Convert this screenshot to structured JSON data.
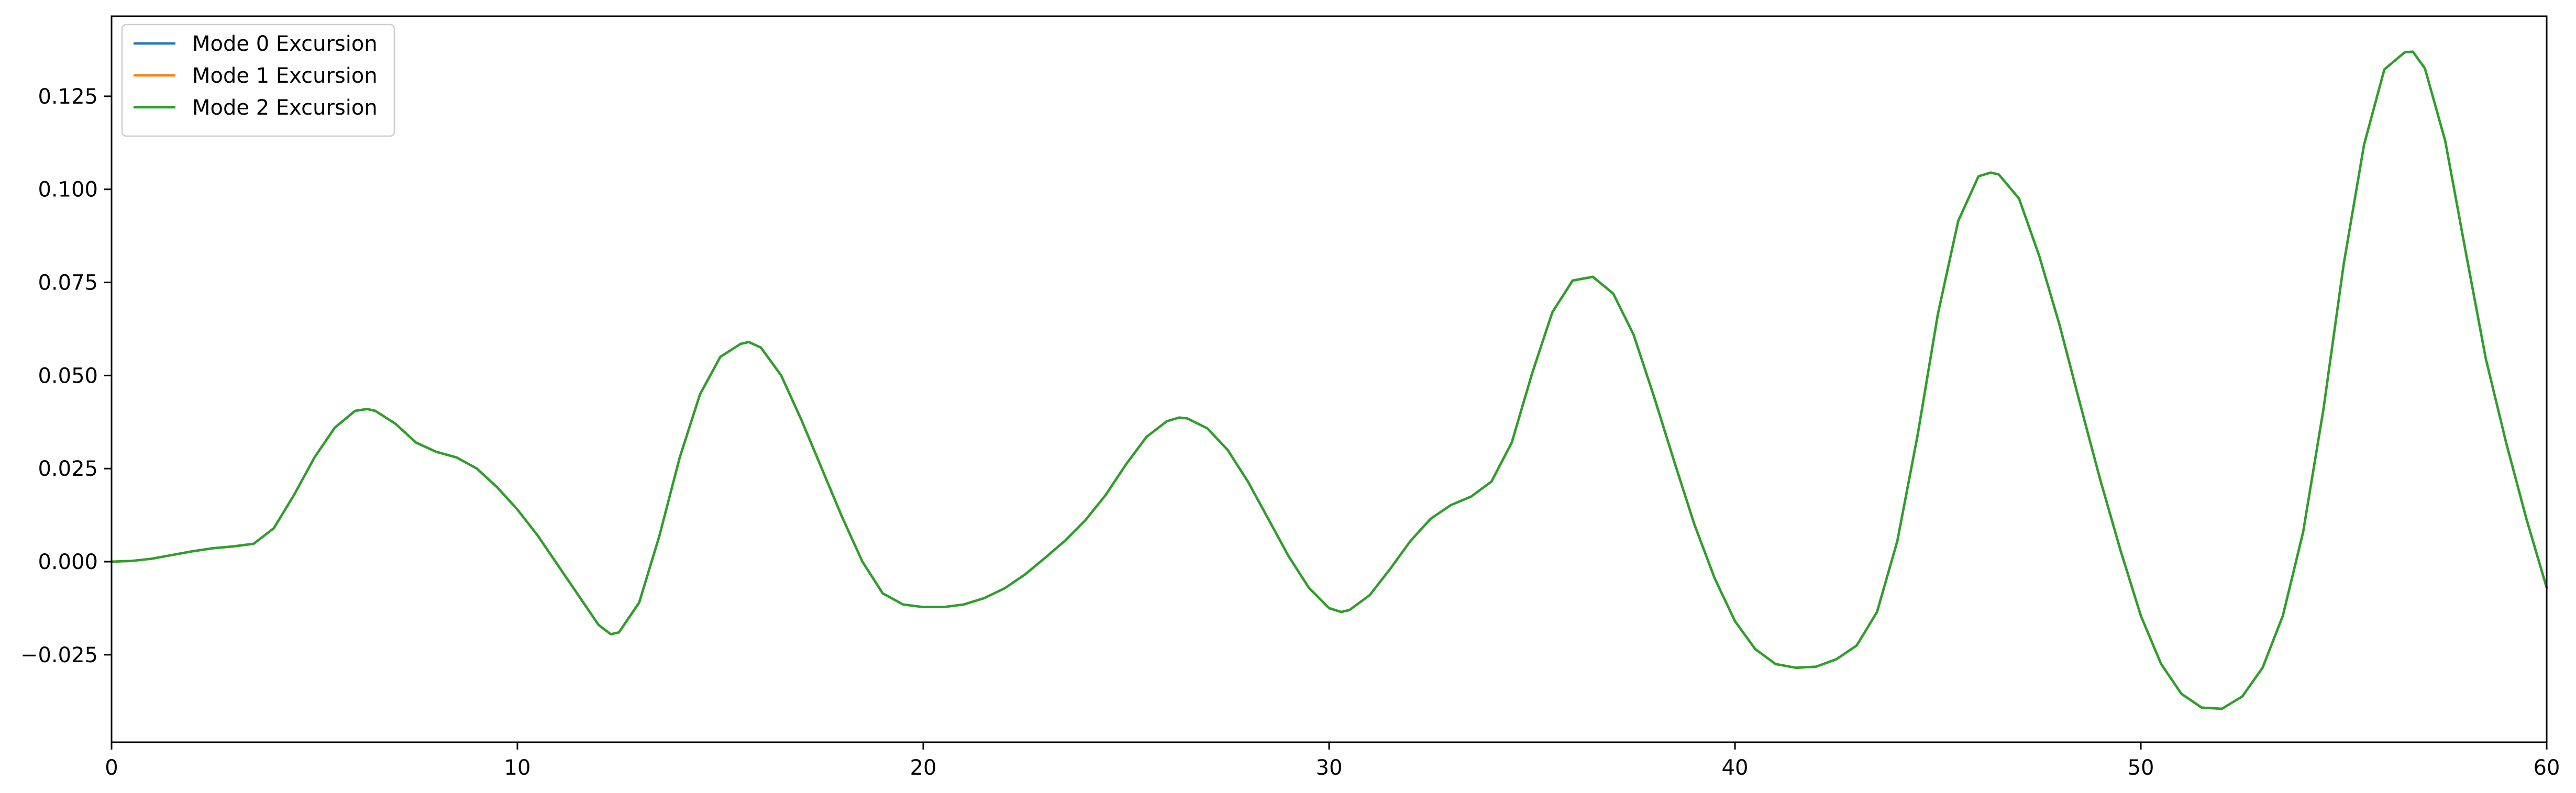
{
  "chart_data": {
    "type": "line",
    "title": "",
    "xlabel": "",
    "ylabel": "",
    "xlim": [
      0,
      60
    ],
    "ylim": [
      -0.0485,
      0.1465
    ],
    "grid": false,
    "legend_position": "top-left",
    "x_ticks": [
      0,
      10,
      20,
      30,
      40,
      50,
      60
    ],
    "x_tick_labels": [
      "0",
      "10",
      "20",
      "30",
      "40",
      "50",
      "60"
    ],
    "y_ticks": [
      -0.025,
      0.0,
      0.025,
      0.05,
      0.075,
      0.1,
      0.125
    ],
    "y_tick_labels": [
      "−0.025",
      "0.000",
      "0.025",
      "0.050",
      "0.075",
      "0.100",
      "0.125"
    ],
    "x": [
      0,
      0.5,
      1,
      1.5,
      2,
      2.5,
      3,
      3.5,
      4,
      4.5,
      5,
      5.5,
      6,
      6.3,
      6.5,
      7,
      7.5,
      8,
      8.5,
      9,
      9.5,
      10,
      10.5,
      11,
      11.5,
      12,
      12.3,
      12.5,
      13,
      13.5,
      14,
      14.5,
      15,
      15.5,
      15.7,
      16,
      16.5,
      17,
      17.5,
      18,
      18.5,
      19,
      19.5,
      20,
      20.5,
      21,
      21.5,
      22,
      22.5,
      23,
      23.5,
      24,
      24.5,
      25,
      25.5,
      26,
      26.3,
      26.5,
      27,
      27.5,
      28,
      28.5,
      29,
      29.5,
      30,
      30.3,
      30.5,
      31,
      31.5,
      32,
      32.5,
      33,
      33.5,
      34,
      34.5,
      35,
      35.5,
      36,
      36.5,
      37,
      37.5,
      38,
      38.5,
      39,
      39.5,
      40,
      40.5,
      41,
      41.5,
      42,
      42.5,
      43,
      43.5,
      44,
      44.5,
      45,
      45.5,
      46,
      46.3,
      46.5,
      47,
      47.5,
      48,
      48.5,
      49,
      49.5,
      50,
      50.5,
      51,
      51.5,
      52,
      52.5,
      53,
      53.5,
      54,
      54.5,
      55,
      55.5,
      56,
      56.5,
      56.7,
      57,
      57.5,
      58,
      58.5,
      59,
      59.5,
      60
    ],
    "series": [
      {
        "name": "Mode 0 Excursion",
        "color": "#1f77b4",
        "values": [
          0.0,
          0.0002,
          0.0008,
          0.0018,
          0.0028,
          0.0036,
          0.0041,
          0.0048,
          0.009,
          0.018,
          0.028,
          0.036,
          0.0405,
          0.041,
          0.0405,
          0.037,
          0.032,
          0.0295,
          0.028,
          0.025,
          0.02,
          0.014,
          0.007,
          -0.001,
          -0.009,
          -0.017,
          -0.0195,
          -0.019,
          -0.011,
          0.007,
          0.028,
          0.045,
          0.055,
          0.0585,
          0.059,
          0.0575,
          0.05,
          0.038,
          0.025,
          0.012,
          0.0,
          -0.0085,
          -0.0115,
          -0.0122,
          -0.0122,
          -0.0115,
          -0.0098,
          -0.0072,
          -0.0035,
          0.001,
          0.0057,
          0.0112,
          0.018,
          0.0262,
          0.0335,
          0.0377,
          0.0387,
          0.0385,
          0.0358,
          0.03,
          0.0215,
          0.0115,
          0.0015,
          -0.007,
          -0.0125,
          -0.0135,
          -0.013,
          -0.009,
          -0.002,
          0.0055,
          0.0115,
          0.0152,
          0.0175,
          0.0215,
          0.032,
          0.0505,
          0.067,
          0.0755,
          0.0765,
          0.072,
          0.061,
          0.0445,
          0.027,
          0.01,
          -0.0045,
          -0.016,
          -0.0235,
          -0.0275,
          -0.0285,
          -0.0282,
          -0.0262,
          -0.0225,
          -0.0135,
          0.0055,
          0.034,
          0.0665,
          0.0915,
          0.1035,
          0.1045,
          0.104,
          0.0975,
          0.082,
          0.0635,
          0.0425,
          0.022,
          0.003,
          -0.0145,
          -0.0275,
          -0.0355,
          -0.0392,
          -0.0395,
          -0.0362,
          -0.0285,
          -0.0145,
          0.008,
          0.041,
          0.08,
          0.112,
          0.1322,
          0.1368,
          0.137,
          0.1325,
          0.113,
          0.0835,
          0.0545,
          0.032,
          0.0115,
          -0.007
        ]
      },
      {
        "name": "Mode 1 Excursion",
        "color": "#ff7f0e",
        "values": [
          0.0,
          0.0002,
          0.0008,
          0.0018,
          0.0028,
          0.0036,
          0.0041,
          0.0048,
          0.009,
          0.018,
          0.028,
          0.036,
          0.0405,
          0.041,
          0.0405,
          0.037,
          0.032,
          0.0295,
          0.028,
          0.025,
          0.02,
          0.014,
          0.007,
          -0.001,
          -0.009,
          -0.017,
          -0.0195,
          -0.019,
          -0.011,
          0.007,
          0.028,
          0.045,
          0.055,
          0.0585,
          0.059,
          0.0575,
          0.05,
          0.038,
          0.025,
          0.012,
          0.0,
          -0.0085,
          -0.0115,
          -0.0122,
          -0.0122,
          -0.0115,
          -0.0098,
          -0.0072,
          -0.0035,
          0.001,
          0.0057,
          0.0112,
          0.018,
          0.0262,
          0.0335,
          0.0377,
          0.0387,
          0.0385,
          0.0358,
          0.03,
          0.0215,
          0.0115,
          0.0015,
          -0.007,
          -0.0125,
          -0.0135,
          -0.013,
          -0.009,
          -0.002,
          0.0055,
          0.0115,
          0.0152,
          0.0175,
          0.0215,
          0.032,
          0.0505,
          0.067,
          0.0755,
          0.0765,
          0.072,
          0.061,
          0.0445,
          0.027,
          0.01,
          -0.0045,
          -0.016,
          -0.0235,
          -0.0275,
          -0.0285,
          -0.0282,
          -0.0262,
          -0.0225,
          -0.0135,
          0.0055,
          0.034,
          0.0665,
          0.0915,
          0.1035,
          0.1045,
          0.104,
          0.0975,
          0.082,
          0.0635,
          0.0425,
          0.022,
          0.003,
          -0.0145,
          -0.0275,
          -0.0355,
          -0.0392,
          -0.0395,
          -0.0362,
          -0.0285,
          -0.0145,
          0.008,
          0.041,
          0.08,
          0.112,
          0.1322,
          0.1368,
          0.137,
          0.1325,
          0.113,
          0.0835,
          0.0545,
          0.032,
          0.0115,
          -0.007
        ]
      },
      {
        "name": "Mode 2 Excursion",
        "color": "#2ca02c",
        "values": [
          0.0,
          0.0002,
          0.0008,
          0.0018,
          0.0028,
          0.0036,
          0.0041,
          0.0048,
          0.009,
          0.018,
          0.028,
          0.036,
          0.0405,
          0.041,
          0.0405,
          0.037,
          0.032,
          0.0295,
          0.028,
          0.025,
          0.02,
          0.014,
          0.007,
          -0.001,
          -0.009,
          -0.017,
          -0.0195,
          -0.019,
          -0.011,
          0.007,
          0.028,
          0.045,
          0.055,
          0.0585,
          0.059,
          0.0575,
          0.05,
          0.038,
          0.025,
          0.012,
          0.0,
          -0.0085,
          -0.0115,
          -0.0122,
          -0.0122,
          -0.0115,
          -0.0098,
          -0.0072,
          -0.0035,
          0.001,
          0.0057,
          0.0112,
          0.018,
          0.0262,
          0.0335,
          0.0377,
          0.0387,
          0.0385,
          0.0358,
          0.03,
          0.0215,
          0.0115,
          0.0015,
          -0.007,
          -0.0125,
          -0.0135,
          -0.013,
          -0.009,
          -0.002,
          0.0055,
          0.0115,
          0.0152,
          0.0175,
          0.0215,
          0.032,
          0.0505,
          0.067,
          0.0755,
          0.0765,
          0.072,
          0.061,
          0.0445,
          0.027,
          0.01,
          -0.0045,
          -0.016,
          -0.0235,
          -0.0275,
          -0.0285,
          -0.0282,
          -0.0262,
          -0.0225,
          -0.0135,
          0.0055,
          0.034,
          0.0665,
          0.0915,
          0.1035,
          0.1045,
          0.104,
          0.0975,
          0.082,
          0.0635,
          0.0425,
          0.022,
          0.003,
          -0.0145,
          -0.0275,
          -0.0355,
          -0.0392,
          -0.0395,
          -0.0362,
          -0.0285,
          -0.0145,
          0.008,
          0.041,
          0.08,
          0.112,
          0.1322,
          0.1368,
          0.137,
          0.1325,
          0.113,
          0.0835,
          0.0545,
          0.032,
          0.0115,
          -0.007
        ]
      }
    ]
  }
}
